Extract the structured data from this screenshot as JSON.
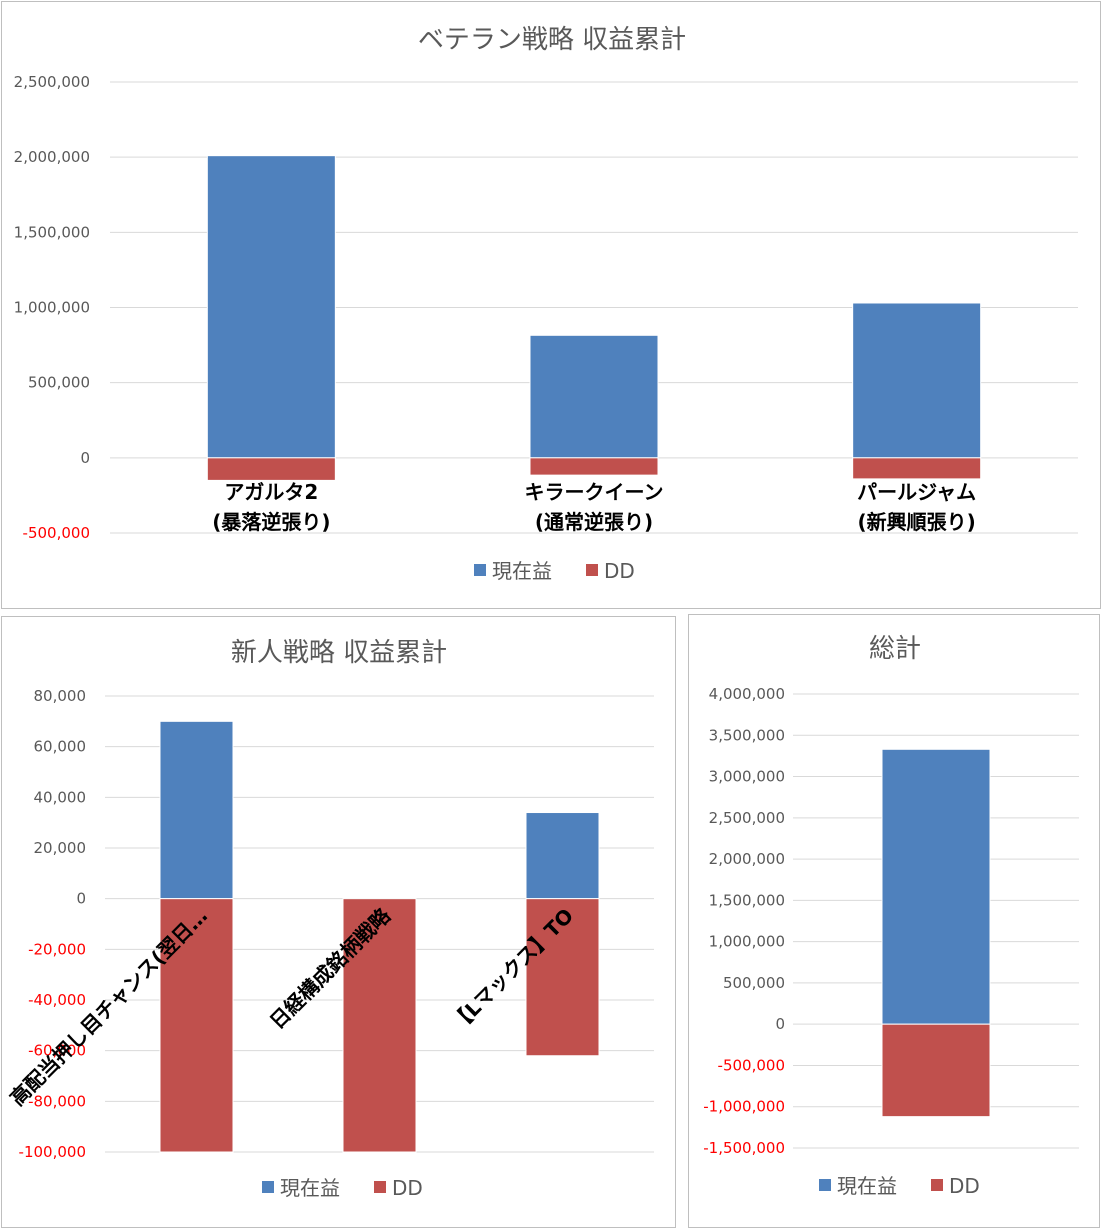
{
  "colors": {
    "profit": "#4f81bd",
    "dd": "#c0504d"
  },
  "legend": {
    "profit": "現在益",
    "dd": "DD"
  },
  "chart_data": [
    {
      "id": "veteran",
      "type": "bar",
      "stacked": true,
      "title": "ベテラン戦略 収益累計",
      "categories": [
        [
          "アガルタ2",
          "(暴落逆張り)"
        ],
        [
          "キラークイーン",
          "(通常逆張り)"
        ],
        [
          "パールジャム",
          "(新興順張り)"
        ]
      ],
      "series": [
        {
          "name": "現在益",
          "values": [
            2010000,
            815000,
            1030000
          ]
        },
        {
          "name": "DD",
          "values": [
            -150000,
            -115000,
            -140000
          ]
        }
      ],
      "ylim": [
        -500000,
        2500000
      ],
      "yticks": [
        -500000,
        0,
        500000,
        1000000,
        1500000,
        2000000,
        2500000
      ],
      "ytick_labels": [
        "-500,000",
        "0",
        "500,000",
        "1,000,000",
        "1,500,000",
        "2,000,000",
        "2,500,000"
      ],
      "grid": true,
      "legend_position": "bottom"
    },
    {
      "id": "newbie",
      "type": "bar",
      "stacked": true,
      "title": "新人戦略 収益累計",
      "categories": [
        [
          "高配当押し目チャンス(翌日…"
        ],
        [
          "日経構成銘柄戦略"
        ],
        [
          "【Lマックス】TO"
        ]
      ],
      "series": [
        {
          "name": "現在益",
          "values": [
            70000,
            0,
            34000
          ]
        },
        {
          "name": "DD",
          "values": [
            -100000,
            -100000,
            -62000
          ]
        }
      ],
      "ylim": [
        -100000,
        80000
      ],
      "yticks": [
        -100000,
        -80000,
        -60000,
        -40000,
        -20000,
        0,
        20000,
        40000,
        60000,
        80000
      ],
      "ytick_labels": [
        "-100,000",
        "-80,000",
        "-60,000",
        "-40,000",
        "-20,000",
        "0",
        "20,000",
        "40,000",
        "60,000",
        "80,000"
      ],
      "grid": true,
      "legend_position": "bottom"
    },
    {
      "id": "total",
      "type": "bar",
      "stacked": true,
      "title": "総計",
      "categories": [
        [
          ""
        ]
      ],
      "series": [
        {
          "name": "現在益",
          "values": [
            3330000
          ]
        },
        {
          "name": "DD",
          "values": [
            -1120000
          ]
        }
      ],
      "ylim": [
        -1500000,
        4000000
      ],
      "yticks": [
        -1500000,
        -1000000,
        -500000,
        0,
        500000,
        1000000,
        1500000,
        2000000,
        2500000,
        3000000,
        3500000,
        4000000
      ],
      "ytick_labels": [
        "-1,500,000",
        "-1,000,000",
        "-500,000",
        "0",
        "500,000",
        "1,000,000",
        "1,500,000",
        "2,000,000",
        "2,500,000",
        "3,000,000",
        "3,500,000",
        "4,000,000"
      ],
      "grid": true,
      "legend_position": "bottom"
    }
  ]
}
